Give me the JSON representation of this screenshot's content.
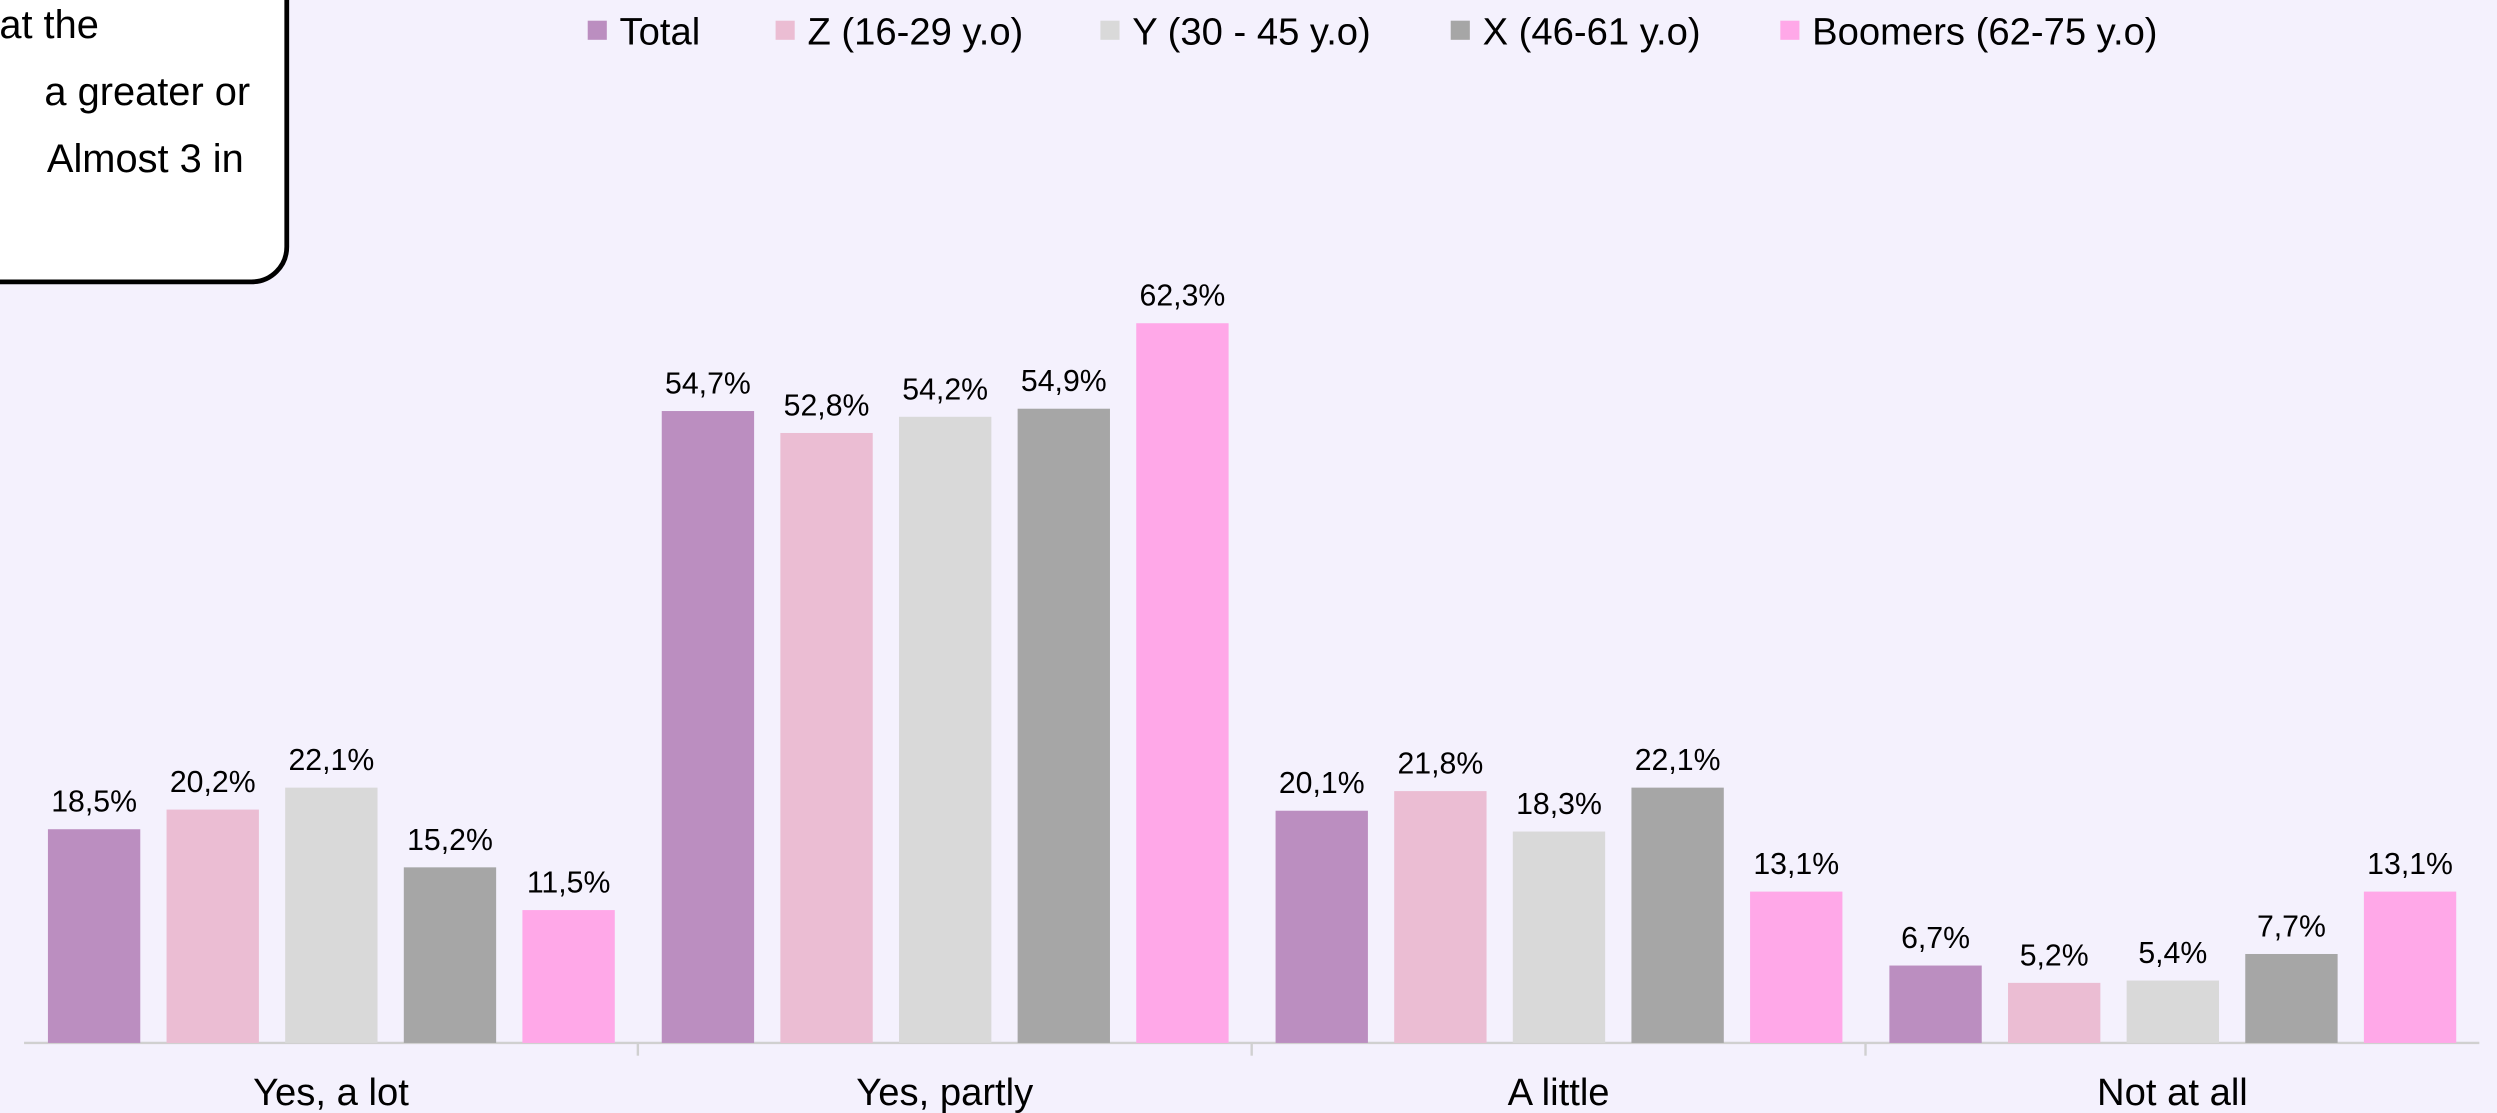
{
  "chart_data": {
    "type": "bar",
    "callout": [
      "at the",
      "a greater or",
      "Almost 3 in"
    ],
    "categories": [
      "Yes, a lot",
      "Yes, partly",
      "A little",
      "Not at all"
    ],
    "series": [
      {
        "name": "Total",
        "color": "#bb8ec0",
        "values": [
          18.5,
          54.7,
          20.1,
          6.7
        ],
        "value_labels": [
          "18,5%",
          "54,7%",
          "20,1%",
          "6,7%"
        ]
      },
      {
        "name": "Z (16-29 y.o)",
        "color": "#ebbdd3",
        "values": [
          20.2,
          52.8,
          21.8,
          5.2
        ],
        "value_labels": [
          "20,2%",
          "52,8%",
          "21,8%",
          "5,2%"
        ]
      },
      {
        "name": "Y (30 - 45 y.o)",
        "color": "#d9d9d9",
        "values": [
          22.1,
          54.2,
          18.3,
          5.4
        ],
        "value_labels": [
          "22,1%",
          "54,2%",
          "18,3%",
          "5,4%"
        ]
      },
      {
        "name": "X (46-61 y.o)",
        "color": "#a6a6a6",
        "values": [
          15.2,
          54.9,
          22.1,
          7.7
        ],
        "value_labels": [
          "15,2%",
          "54,9%",
          "22,1%",
          "7,7%"
        ]
      },
      {
        "name": "Boomers (62-75 y.o)",
        "color": "#ffa8e8",
        "values": [
          11.5,
          62.3,
          13.1,
          13.1
        ],
        "value_labels": [
          "11,5%",
          "62,3%",
          "13,1%",
          "13,1%"
        ]
      }
    ],
    "legend": "top"
  }
}
